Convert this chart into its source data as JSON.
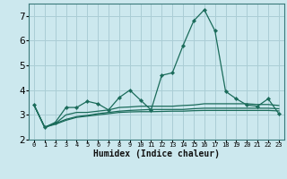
{
  "xlabel": "Humidex (Indice chaleur)",
  "background_color": "#cce8ee",
  "grid_color": "#aacdd5",
  "line_color": "#1a6b5a",
  "x_values": [
    0,
    1,
    2,
    3,
    4,
    5,
    6,
    7,
    8,
    9,
    10,
    11,
    12,
    13,
    14,
    15,
    16,
    17,
    18,
    19,
    20,
    21,
    22,
    23
  ],
  "line1": [
    3.4,
    2.5,
    2.7,
    3.3,
    3.3,
    3.55,
    3.45,
    3.2,
    3.7,
    4.0,
    3.6,
    3.2,
    4.6,
    4.7,
    5.8,
    6.8,
    7.25,
    6.4,
    3.95,
    3.65,
    3.4,
    3.35,
    3.65,
    3.05
  ],
  "line2": [
    3.4,
    2.5,
    2.65,
    3.0,
    3.1,
    3.1,
    3.15,
    3.2,
    3.3,
    3.32,
    3.35,
    3.35,
    3.35,
    3.35,
    3.38,
    3.4,
    3.45,
    3.45,
    3.45,
    3.45,
    3.45,
    3.42,
    3.42,
    3.38
  ],
  "line3": [
    3.4,
    2.5,
    2.65,
    2.82,
    2.93,
    2.98,
    3.05,
    3.1,
    3.15,
    3.18,
    3.2,
    3.22,
    3.22,
    3.22,
    3.22,
    3.25,
    3.27,
    3.27,
    3.27,
    3.27,
    3.27,
    3.27,
    3.27,
    3.25
  ],
  "line4": [
    3.4,
    2.5,
    2.62,
    2.78,
    2.9,
    2.95,
    3.0,
    3.05,
    3.1,
    3.12,
    3.13,
    3.13,
    3.14,
    3.15,
    3.15,
    3.17,
    3.18,
    3.18,
    3.18,
    3.18,
    3.18,
    3.18,
    3.18,
    3.16
  ],
  "ylim": [
    2.0,
    7.5
  ],
  "yticks": [
    2,
    3,
    4,
    5,
    6,
    7
  ],
  "xlim": [
    -0.5,
    23.5
  ]
}
